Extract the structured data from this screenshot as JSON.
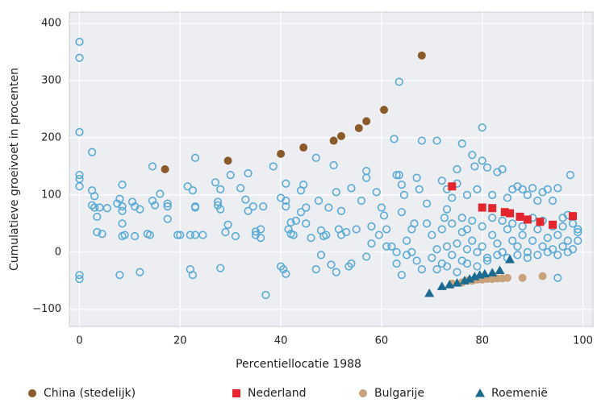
{
  "chart_data": {
    "type": "scatter",
    "x_label": "Percentiellocatie 1988",
    "y_label": "Cumulatieve groeivoet in procenten",
    "xlim": [
      -2,
      102
    ],
    "ylim": [
      -130,
      420
    ],
    "xticks": [
      0,
      20,
      40,
      60,
      80,
      100
    ],
    "yticks": [
      {
        "value": -100,
        "label": "−100"
      },
      0,
      100,
      200,
      300,
      400
    ],
    "grid": true,
    "legend": "bottom",
    "series": [
      {
        "color": "#5aaad6",
        "marker": "circle-open",
        "x": [
          0,
          0,
          0,
          0,
          0,
          0,
          0,
          0,
          2.5,
          2.5,
          2.5,
          3,
          3,
          3.5,
          3.5,
          4,
          4.5,
          5.5,
          7.5,
          8,
          8.5,
          8.5,
          8.5,
          8.5,
          8.5,
          8,
          9,
          10.5,
          11,
          11,
          12,
          12,
          13.5,
          14,
          14.5,
          14.5,
          15,
          16,
          17.5,
          17.5,
          17.5,
          19.5,
          20,
          21.5,
          22,
          22,
          22.5,
          23,
          23,
          23,
          23,
          22.5,
          24.5,
          27,
          27.5,
          27.5,
          28,
          28,
          28,
          29,
          29.5,
          30,
          31,
          32,
          33,
          33.5,
          33.5,
          34.5,
          35,
          35,
          36,
          36,
          37,
          36.5,
          38.5,
          40,
          40,
          40.5,
          41,
          41,
          41,
          41,
          41.5,
          42,
          42,
          42.5,
          43,
          44,
          44,
          44.5,
          45,
          45,
          46,
          47,
          47,
          47.5,
          48,
          48,
          48.5,
          49,
          49.5,
          50,
          50.5,
          51,
          51,
          51.5,
          52,
          52,
          53,
          53.5,
          54,
          54,
          55,
          56,
          57,
          57,
          57,
          58,
          58,
          59,
          59.5,
          60,
          60.5,
          61,
          61,
          62.5,
          63,
          63.5,
          63.5,
          64,
          64.5,
          64,
          64,
          65,
          66,
          66.5,
          67,
          67.5,
          68,
          69,
          69,
          70,
          71,
          72,
          72.5,
          73,
          73,
          74,
          75,
          75,
          76,
          76,
          77,
          77,
          78,
          78.5,
          79,
          80,
          80,
          81,
          82,
          83,
          84,
          85,
          86,
          87,
          88,
          89,
          90,
          91,
          92,
          93,
          94,
          95,
          96,
          97,
          97.5,
          99,
          99,
          95,
          70,
          71,
          72,
          73,
          74,
          75,
          76,
          77,
          78,
          79,
          80,
          81,
          82,
          83,
          84,
          85,
          86,
          87,
          88,
          89,
          90,
          91,
          92,
          93,
          94,
          95,
          96,
          97,
          98,
          99,
          72,
          74,
          76,
          78,
          80,
          82,
          84,
          86,
          88,
          90,
          92,
          94,
          96,
          98,
          71,
          73,
          75,
          77,
          79,
          81,
          83,
          85,
          87,
          89,
          91,
          93,
          95,
          97,
          66,
          67,
          68,
          65,
          63,
          62,
          63
        ],
        "y": [
          368,
          340,
          210,
          135,
          128,
          115,
          -40,
          -47,
          175,
          108,
          82,
          98,
          78,
          62,
          35,
          78,
          32,
          77,
          85,
          93,
          80,
          118,
          72,
          50,
          28,
          -40,
          30,
          88,
          80,
          28,
          75,
          -35,
          32,
          30,
          150,
          90,
          82,
          102,
          85,
          80,
          58,
          30,
          30,
          115,
          30,
          -30,
          -40,
          80,
          78,
          165,
          30,
          108,
          30,
          122,
          88,
          82,
          110,
          75,
          -28,
          35,
          48,
          135,
          28,
          112,
          92,
          72,
          138,
          80,
          36,
          30,
          40,
          25,
          -75,
          80,
          150,
          95,
          -25,
          -30,
          90,
          80,
          -38,
          120,
          40,
          32,
          52,
          30,
          55,
          70,
          108,
          118,
          50,
          78,
          25,
          165,
          -30,
          90,
          -5,
          38,
          28,
          30,
          78,
          -22,
          152,
          -35,
          105,
          40,
          72,
          30,
          35,
          -25,
          112,
          -20,
          40,
          90,
          142,
          130,
          -8,
          15,
          45,
          105,
          30,
          78,
          64,
          40,
          10,
          198,
          135,
          298,
          135,
          118,
          100,
          70,
          -40,
          20,
          40,
          50,
          130,
          110,
          195,
          85,
          50,
          30,
          195,
          125,
          60,
          110,
          75,
          95,
          145,
          120,
          190,
          60,
          100,
          40,
          170,
          150,
          110,
          218,
          160,
          148,
          100,
          140,
          145,
          95,
          110,
          115,
          110,
          100,
          112,
          90,
          105,
          110,
          90,
          112,
          45,
          65,
          135,
          35,
          20,
          -45,
          -10,
          5,
          -20,
          10,
          -5,
          15,
          -15,
          5,
          20,
          0,
          10,
          -10,
          30,
          15,
          0,
          40,
          20,
          10,
          30,
          0,
          20,
          40,
          10,
          25,
          5,
          30,
          10,
          20,
          5,
          40,
          40,
          50,
          35,
          55,
          45,
          60,
          55,
          50,
          45,
          60,
          55,
          45,
          60,
          50,
          -30,
          -25,
          -35,
          -20,
          -25,
          -15,
          -5,
          -10,
          -5,
          -10,
          -5,
          0,
          -5,
          0,
          0,
          -15,
          -30,
          -5,
          0,
          10,
          -20
        ]
      },
      {
        "name": "China (stedelijk)",
        "color": "#8b5a2b",
        "marker": "circle",
        "x": [
          17,
          29.5,
          40,
          44.5,
          50.5,
          52,
          55.5,
          57,
          60.5,
          68
        ],
        "y": [
          145,
          160,
          172,
          183,
          195,
          203,
          217,
          229,
          249,
          344
        ]
      },
      {
        "name": "Nederland",
        "color": "#e3262d",
        "marker": "square",
        "x": [
          74,
          80,
          82,
          84.5,
          85.5,
          87.5,
          89,
          91.5,
          94,
          98
        ],
        "y": [
          115,
          78,
          77,
          70,
          68,
          62,
          57,
          53,
          48,
          63
        ]
      },
      {
        "name": "Bulgarije",
        "color": "#c8a27a",
        "marker": "circle",
        "x": [
          74,
          76,
          77,
          78,
          79,
          80,
          81,
          82,
          83,
          84,
          85,
          88,
          92
        ],
        "y": [
          -55,
          -53,
          -50,
          -50,
          -48,
          -48,
          -47,
          -47,
          -46,
          -46,
          -45,
          -45,
          -42
        ]
      },
      {
        "name": "Roemenië",
        "color": "#1a6b8f",
        "marker": "triangle",
        "x": [
          69.5,
          72,
          73.5,
          75,
          76.5,
          77.5,
          78.5,
          79.5,
          80.5,
          82,
          83.5,
          85.5
        ],
        "y": [
          -72,
          -60,
          -57,
          -54,
          -50,
          -47,
          -43,
          -40,
          -38,
          -36,
          -32,
          -13
        ]
      }
    ]
  }
}
